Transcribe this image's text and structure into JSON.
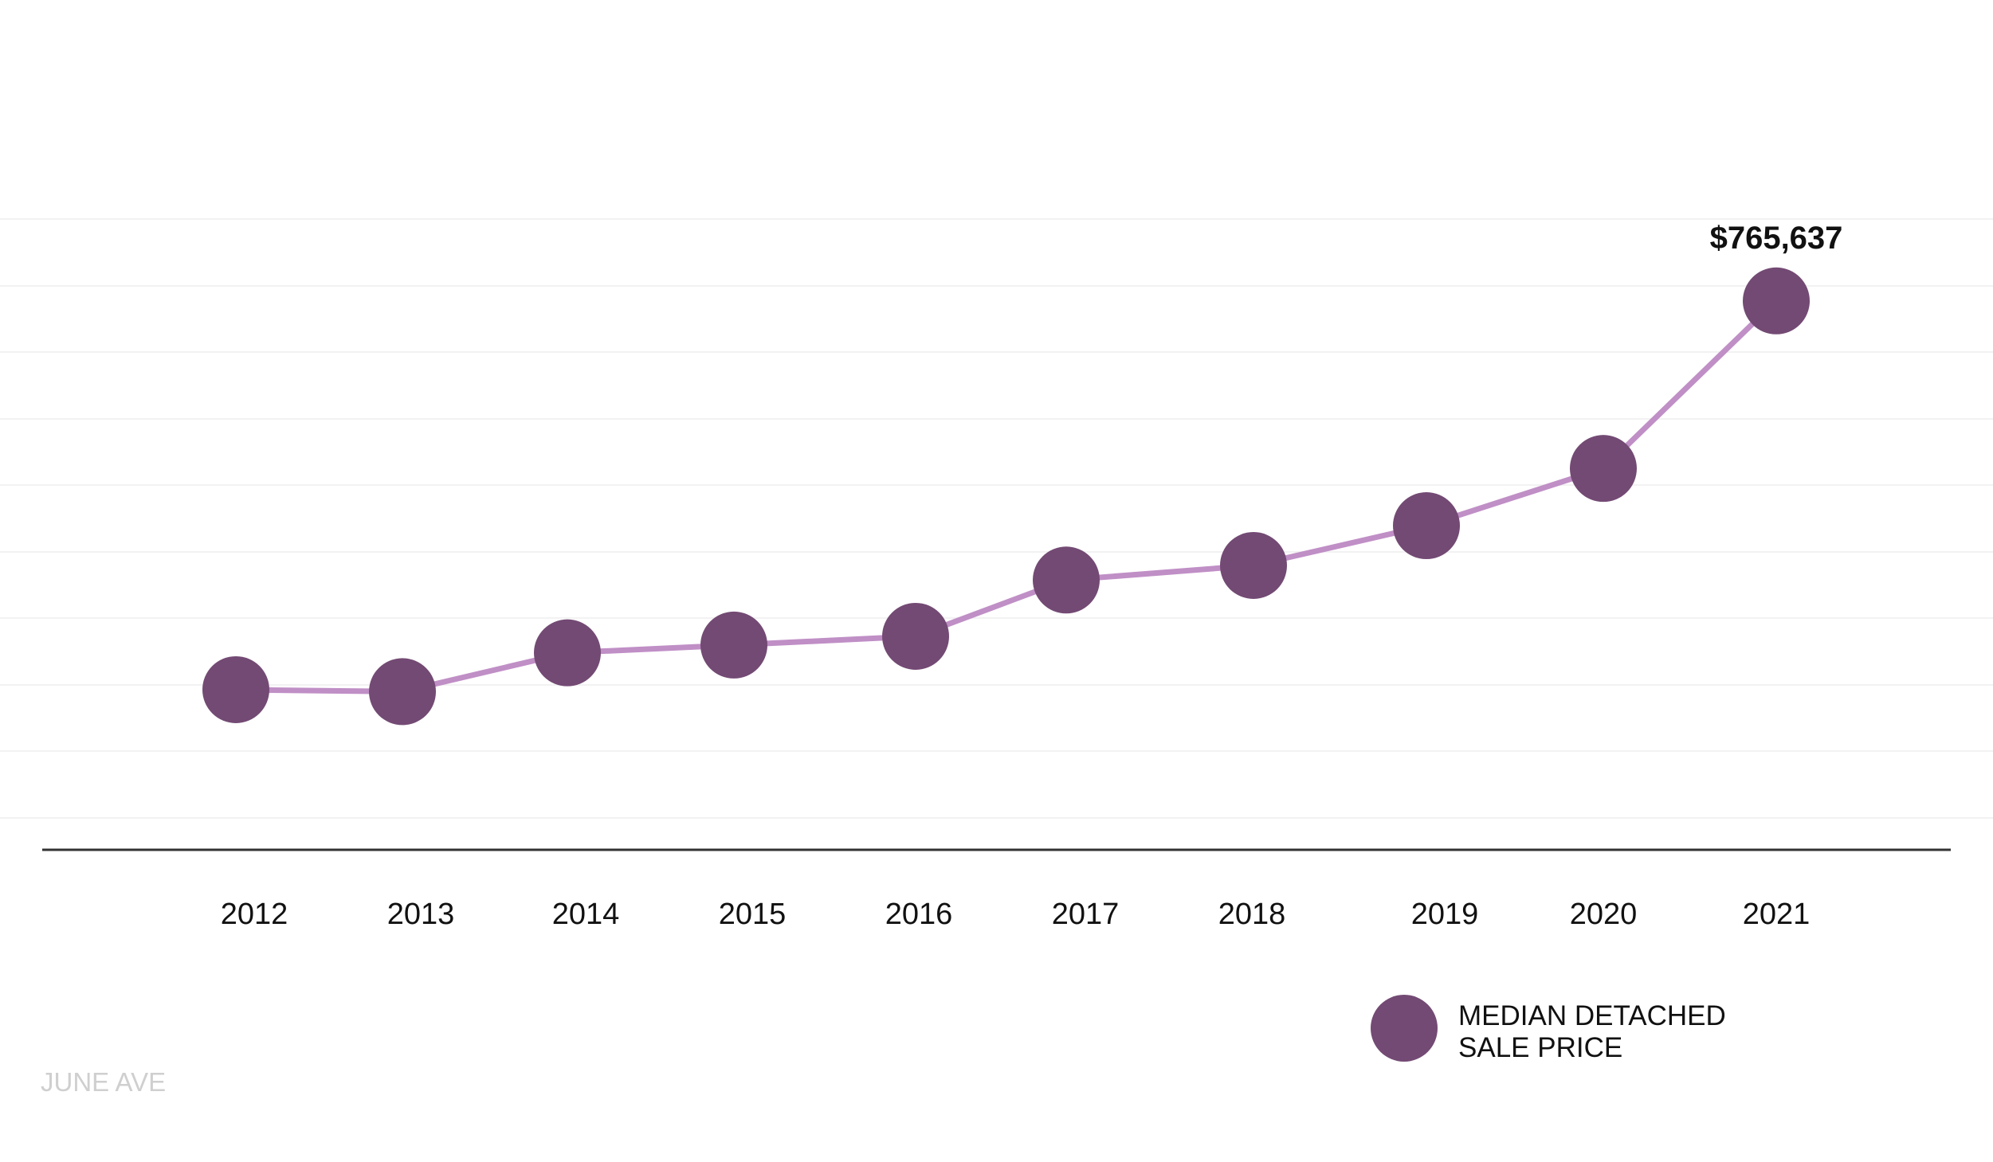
{
  "chart_data": {
    "type": "line",
    "categories": [
      "2012",
      "2013",
      "2014",
      "2015",
      "2016",
      "2017",
      "2018",
      "2019",
      "2020",
      "2021"
    ],
    "series": [
      {
        "name": "MEDIAN DETACHED SALE PRICE",
        "values": [
          365000,
          363000,
          403000,
          411000,
          420000,
          478000,
          493000,
          534000,
          593000,
          765637
        ]
      }
    ],
    "data_labels": [
      {
        "index": 9,
        "text": "$765,637"
      }
    ],
    "legend": {
      "lines": [
        "MEDIAN DETACHED",
        "SALE PRICE"
      ],
      "placement": "bottom-right"
    },
    "grid": true,
    "ylim": [
      200000,
      850000
    ],
    "xlabel": "",
    "ylabel": "",
    "title": ""
  },
  "watermark": "JUNE AVE",
  "colors": {
    "line": "#c08fc6",
    "marker": "#734a74",
    "axis": "#333333",
    "grid": "#f2f2f2",
    "watermark": "#cfcfcf"
  }
}
